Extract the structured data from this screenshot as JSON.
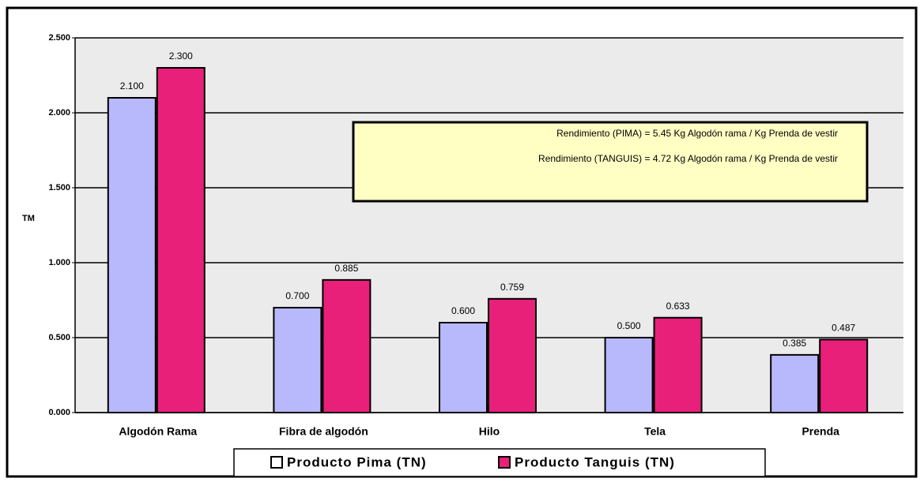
{
  "chart_data": {
    "type": "bar",
    "ylabel": "TM",
    "categories": [
      "Algodón Rama",
      "Fibra de algodón",
      "Hilo",
      "Tela",
      "Prenda"
    ],
    "series": [
      {
        "name": "Producto Pima (TN)",
        "color": "#b8b8fc",
        "values": [
          2.1,
          0.7,
          0.6,
          0.5,
          0.385
        ],
        "value_labels": [
          "2.100",
          "0.700",
          "0.600",
          "0.500",
          "0.385"
        ]
      },
      {
        "name": "Producto Tanguis (TN)",
        "color": "#e8207a",
        "values": [
          2.3,
          0.885,
          0.759,
          0.633,
          0.487
        ],
        "value_labels": [
          "2.300",
          "0.885",
          "0.759",
          "0.633",
          "0.487"
        ]
      }
    ],
    "ylim": [
      0,
      2.5
    ],
    "yticks": [
      {
        "value": 0,
        "label": "0.000"
      },
      {
        "value": 0.5,
        "label": "0.500"
      },
      {
        "value": 1,
        "label": "1.000"
      },
      {
        "value": 1.5,
        "label": "1.500"
      },
      {
        "value": 2,
        "label": "2.000"
      },
      {
        "value": 2.5,
        "label": "2.500"
      }
    ],
    "grid": true,
    "annotations": [
      "Rendimiento (PIMA) = 5.45 Kg Algodón rama / Kg Prenda de vestir",
      "Rendimiento (TANGUIS) = 4.72 Kg Algodón rama / Kg Prenda de vestir"
    ]
  }
}
